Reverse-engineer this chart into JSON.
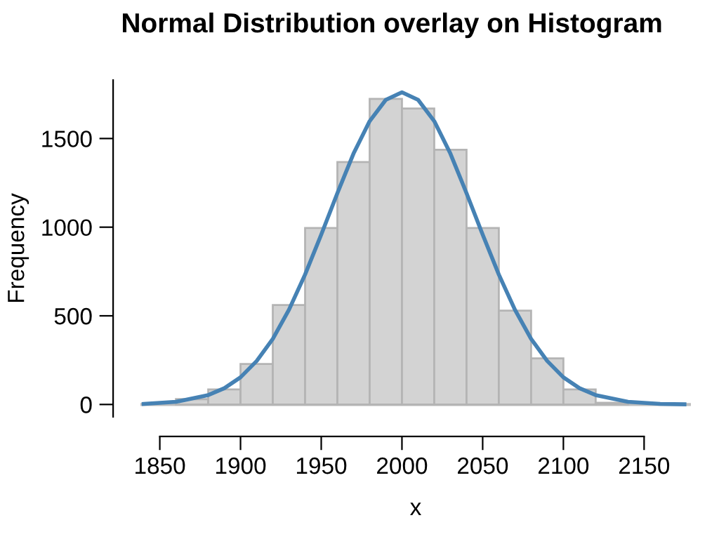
{
  "chart_data": {
    "type": "histogram",
    "title": "Normal Distribution overlay on Histogram",
    "xlabel": "x",
    "ylabel": "Frequency",
    "bins": [
      1860,
      1880,
      1900,
      1920,
      1940,
      1960,
      1980,
      2000,
      2020,
      2040,
      2060,
      2080,
      2100,
      2120,
      2140
    ],
    "values": [
      30,
      85,
      228,
      561,
      995,
      1367,
      1724,
      1669,
      1437,
      995,
      529,
      260,
      85,
      10
    ],
    "color": "#d3d3d3",
    "series": [
      {
        "type": "line",
        "color": "#4682b4",
        "x": [
          1840,
          1860,
          1880,
          1890,
          1900,
          1910,
          1920,
          1930,
          1940,
          1950,
          1960,
          1970,
          1980,
          1990,
          2000,
          2010,
          2020,
          2030,
          2040,
          2050,
          2060,
          2070,
          2080,
          2090,
          2100,
          2110,
          2120,
          2140,
          2160,
          2175
        ],
        "values": [
          3,
          15,
          53,
          92,
          153,
          245,
          370,
          534,
          733,
          958,
          1192,
          1415,
          1598,
          1718,
          1761,
          1718,
          1598,
          1415,
          1192,
          958,
          733,
          534,
          370,
          245,
          153,
          92,
          53,
          15,
          3,
          1
        ]
      }
    ],
    "ref_lines": [
      {
        "axis": "y",
        "value": 0,
        "color": "#bebebe"
      }
    ],
    "xlim": [
      1838,
      2179
    ],
    "ylim": [
      -70,
      1830
    ],
    "xticks": [
      1850,
      1900,
      1950,
      2000,
      2050,
      2100,
      2150
    ],
    "yticks": [
      0,
      500,
      1000,
      1500
    ],
    "grid": false,
    "legend": false
  }
}
